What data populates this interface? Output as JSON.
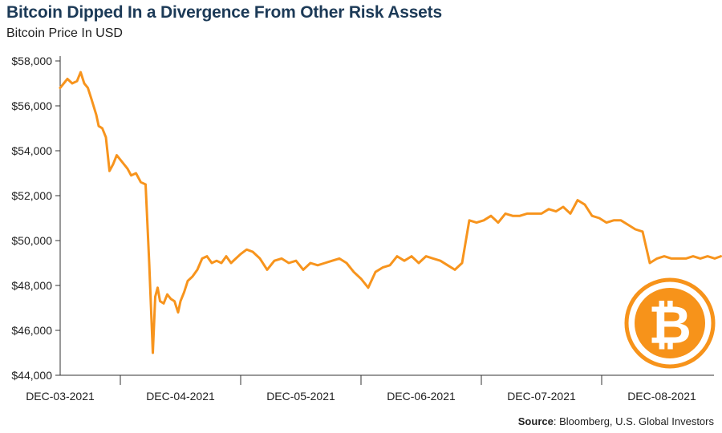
{
  "header": {
    "title": "Bitcoin Dipped In a Divergence From Other Risk Assets",
    "subtitle": "Bitcoin Price In USD"
  },
  "footer": {
    "source_label": "Source",
    "source_text": ": Bloomberg, U.S. Global Investors"
  },
  "colors": {
    "line": "#f7941d",
    "logo_ring": "#f7931a",
    "title": "#1c3a57"
  },
  "logo": {
    "icon": "bitcoin-logo-icon",
    "glyph": "₿"
  },
  "chart_data": {
    "type": "line",
    "title": "Bitcoin Dipped In a Divergence From Other Risk Assets",
    "subtitle": "Bitcoin Price In USD",
    "xlabel": "",
    "ylabel": "",
    "ylim": [
      44000,
      58000
    ],
    "xlim": [
      0,
      5.49
    ],
    "x_tick_positions": [
      0,
      1,
      2,
      3,
      4,
      5
    ],
    "x_tick_labels": [
      "DEC-03-2021",
      "DEC-04-2021",
      "DEC-05-2021",
      "DEC-06-2021",
      "DEC-07-2021",
      "DEC-08-2021"
    ],
    "y_ticks": [
      44000,
      46000,
      48000,
      50000,
      52000,
      54000,
      56000,
      58000
    ],
    "y_tick_labels": [
      "$44,000",
      "$46,000",
      "$48,000",
      "$50,000",
      "$52,000",
      "$54,000",
      "$56,000",
      "$58,000"
    ],
    "grid": false,
    "legend": "none",
    "series": [
      {
        "x": [
          0.0,
          0.03,
          0.06,
          0.1,
          0.14,
          0.17,
          0.2,
          0.23,
          0.26,
          0.3,
          0.32,
          0.35,
          0.38,
          0.41,
          0.44,
          0.47,
          0.5,
          0.53,
          0.56,
          0.59,
          0.63,
          0.67,
          0.71,
          0.74,
          0.77,
          0.79,
          0.81,
          0.83,
          0.86,
          0.89,
          0.92,
          0.95,
          0.98,
          1.0,
          1.03,
          1.06,
          1.1,
          1.14,
          1.18,
          1.22,
          1.26,
          1.3,
          1.34,
          1.38,
          1.42,
          1.46,
          1.5,
          1.55,
          1.6,
          1.66,
          1.72,
          1.78,
          1.84,
          1.9,
          1.96,
          2.02,
          2.08,
          2.14,
          2.2,
          2.26,
          2.32,
          2.38,
          2.44,
          2.5,
          2.56,
          2.62,
          2.68,
          2.74,
          2.8,
          2.86,
          2.92,
          2.98,
          3.04,
          3.1,
          3.16,
          3.22,
          3.28,
          3.34,
          3.4,
          3.46,
          3.52,
          3.58,
          3.64,
          3.7,
          3.76,
          3.82,
          3.88,
          3.94,
          4.0,
          4.06,
          4.12,
          4.18,
          4.24,
          4.3,
          4.36,
          4.42,
          4.48,
          4.54,
          4.6,
          4.66,
          4.72,
          4.78,
          4.84,
          4.9,
          4.96,
          5.02,
          5.08,
          5.14,
          5.2,
          5.26,
          5.32,
          5.38,
          5.44,
          5.49
        ],
        "values": [
          56800,
          57000,
          57200,
          57000,
          57100,
          57500,
          57000,
          56800,
          56300,
          55600,
          55100,
          55000,
          54600,
          53100,
          53400,
          53800,
          53600,
          53400,
          53200,
          52900,
          53000,
          52600,
          52500,
          49000,
          45000,
          47500,
          47900,
          47300,
          47200,
          47600,
          47400,
          47300,
          46800,
          47300,
          47700,
          48200,
          48400,
          48700,
          49200,
          49300,
          49000,
          49100,
          49000,
          49300,
          49000,
          49200,
          49400,
          49600,
          49500,
          49200,
          48700,
          49100,
          49200,
          49000,
          49100,
          48700,
          49000,
          48900,
          49000,
          49100,
          49200,
          49000,
          48600,
          48300,
          47900,
          48600,
          48800,
          48900,
          49300,
          49100,
          49300,
          49000,
          49300,
          49200,
          49100,
          48900,
          48700,
          49000,
          50900,
          50800,
          50900,
          51100,
          50800,
          51200,
          51100,
          51100,
          51200,
          51200,
          51200,
          51400,
          51300,
          51500,
          51200,
          51800,
          51600,
          51100,
          51000,
          50800,
          50900,
          50900,
          50700,
          50500,
          50400,
          49000,
          49200,
          49300,
          49200,
          49200,
          49200,
          49300,
          49200,
          49300,
          49200,
          49300
        ]
      }
    ]
  }
}
